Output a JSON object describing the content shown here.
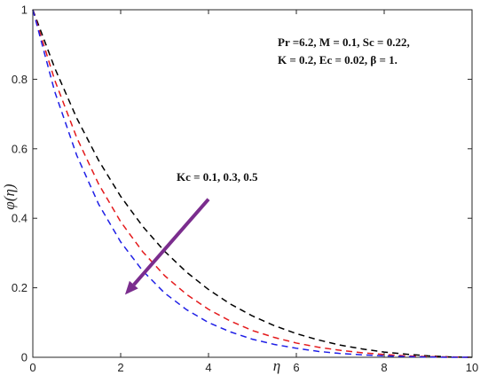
{
  "chart_data": {
    "type": "line",
    "title": "",
    "xlabel": "η",
    "ylabel": "φ(η)",
    "xlim": [
      0,
      10
    ],
    "ylim": [
      0,
      1
    ],
    "xticks": [
      0,
      2,
      4,
      6,
      8,
      10
    ],
    "yticks": [
      0,
      0.2,
      0.4,
      0.6,
      0.8,
      1
    ],
    "xtick_labels": [
      "0",
      "2",
      "4",
      "6",
      "8",
      "10"
    ],
    "ytick_labels": [
      "0",
      "0.2",
      "0.4",
      "0.6",
      "0.8",
      "1"
    ],
    "grid": false,
    "x": [
      0,
      0.5,
      1,
      1.5,
      2,
      2.5,
      3,
      3.5,
      4,
      4.5,
      5,
      5.5,
      6,
      6.5,
      7,
      7.5,
      8,
      8.5,
      9,
      9.5,
      10
    ],
    "series": [
      {
        "color": "#000000",
        "linestyle": "dashed",
        "values": [
          1.0,
          0.832,
          0.688,
          0.566,
          0.463,
          0.377,
          0.305,
          0.245,
          0.195,
          0.153,
          0.119,
          0.091,
          0.068,
          0.05,
          0.035,
          0.024,
          0.015,
          0.009,
          0.004,
          0.001,
          0.0
        ]
      },
      {
        "color": "#e41a1c",
        "linestyle": "dashed",
        "values": [
          1.0,
          0.797,
          0.632,
          0.498,
          0.39,
          0.304,
          0.235,
          0.181,
          0.138,
          0.104,
          0.077,
          0.057,
          0.041,
          0.029,
          0.02,
          0.013,
          0.008,
          0.004,
          0.002,
          0.001,
          0.0
        ]
      },
      {
        "color": "#1f1fe6",
        "linestyle": "dashed",
        "values": [
          1.0,
          0.764,
          0.581,
          0.44,
          0.332,
          0.249,
          0.185,
          0.137,
          0.1,
          0.073,
          0.052,
          0.037,
          0.026,
          0.017,
          0.011,
          0.007,
          0.004,
          0.002,
          0.001,
          0.0,
          0.0
        ]
      }
    ],
    "annotations": {
      "params_line1": "Pr =6.2, M = 0.1, Sc = 0.22,",
      "params_line2": "K = 0.2, Ec = 0.02, β = 1.",
      "arrow_label": "Kc = 0.1, 0.3, 0.5",
      "arrow_color": "#7b2d8e",
      "arrow_from": [
        4.0,
        0.455
      ],
      "arrow_to": [
        2.1,
        0.18
      ]
    }
  }
}
